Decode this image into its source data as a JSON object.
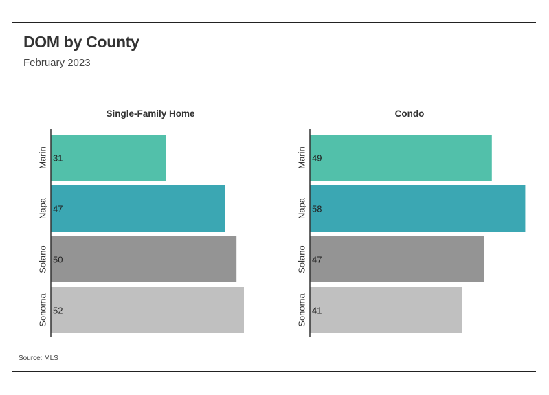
{
  "title": "DOM by County",
  "subtitle": "February 2023",
  "source": "Source: MLS",
  "chart_data": [
    {
      "type": "bar",
      "orientation": "horizontal",
      "title": "Single-Family Home",
      "categories": [
        "Marin",
        "Napa",
        "Solano",
        "Sonoma"
      ],
      "values": [
        31,
        47,
        50,
        52
      ],
      "colors": [
        "#52c0aa",
        "#3ba7b3",
        "#949494",
        "#c0c0c0"
      ],
      "xlim": [
        0,
        60
      ],
      "grid": false
    },
    {
      "type": "bar",
      "orientation": "horizontal",
      "title": "Condo",
      "categories": [
        "Marin",
        "Napa",
        "Solano",
        "Sonoma"
      ],
      "values": [
        49,
        58,
        47,
        41
      ],
      "colors": [
        "#52c0aa",
        "#3ba7b3",
        "#949494",
        "#c0c0c0"
      ],
      "xlim": [
        0,
        60
      ],
      "grid": false
    }
  ]
}
